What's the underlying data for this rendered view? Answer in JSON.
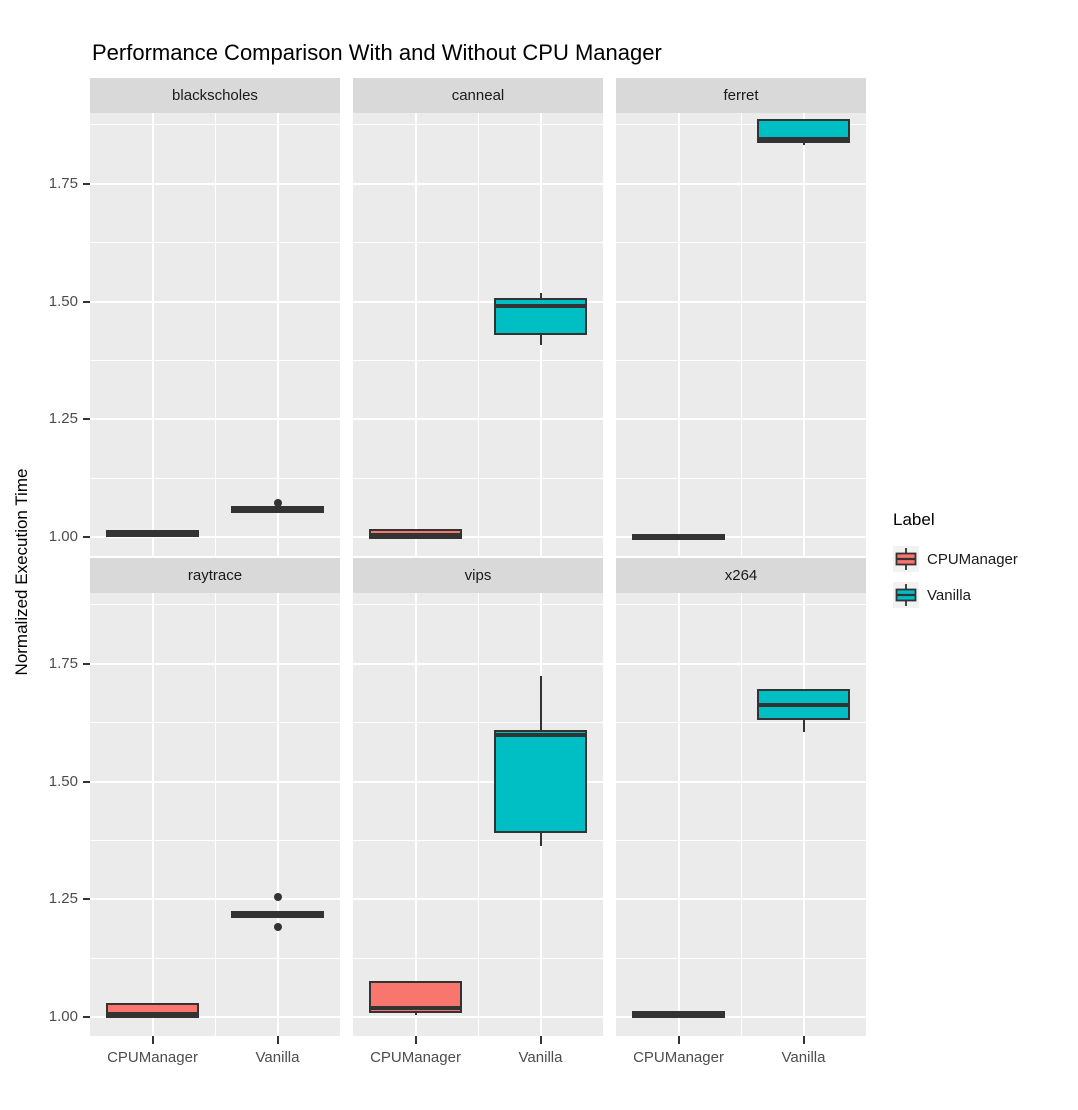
{
  "colors": {
    "series_cpumanager": "#F8766D",
    "series_vanilla": "#00BFC4",
    "panel_background": "#EBEBEB",
    "strip_background": "#D9D9D9",
    "gridline": "#FFFFFF",
    "box_outline": "#333333",
    "legend_key_background": "#F2F2F2"
  },
  "legend": {
    "title": "Label",
    "position": "right",
    "items": [
      {
        "label": "CPUManager",
        "color": "#F8766D"
      },
      {
        "label": "Vanilla",
        "color": "#00BFC4"
      }
    ]
  },
  "chart_data": {
    "type": "boxplot",
    "title": "Performance Comparison With and Without CPU Manager",
    "ylabel": "Normalized Execution Time",
    "xlabel": "",
    "categories": [
      "CPUManager",
      "Vanilla"
    ],
    "yticks": [
      "1.00",
      "1.25",
      "1.50",
      "1.75"
    ],
    "ylim": [
      0.96,
      1.9
    ],
    "grid": true,
    "facet_layout": {
      "rows": 2,
      "cols": 3
    },
    "facets": [
      {
        "name": "blackscholes",
        "boxes": [
          {
            "group": "CPUManager",
            "min": 1.002,
            "q1": 1.004,
            "median": 1.007,
            "q3": 1.01,
            "max": 1.012,
            "outliers": []
          },
          {
            "group": "Vanilla",
            "min": 1.054,
            "q1": 1.056,
            "median": 1.058,
            "q3": 1.061,
            "max": 1.063,
            "outliers": [
              1.073
            ]
          }
        ]
      },
      {
        "name": "canneal",
        "boxes": [
          {
            "group": "CPUManager",
            "min": 0.997,
            "q1": 1.0,
            "median": 1.005,
            "q3": 1.012,
            "max": 1.014,
            "outliers": []
          },
          {
            "group": "Vanilla",
            "min": 1.408,
            "q1": 1.434,
            "median": 1.49,
            "q3": 1.503,
            "max": 1.518,
            "outliers": []
          }
        ]
      },
      {
        "name": "ferret",
        "boxes": [
          {
            "group": "CPUManager",
            "min": 0.997,
            "q1": 0.999,
            "median": 1.001,
            "q3": 1.003,
            "max": 1.004,
            "outliers": []
          },
          {
            "group": "Vanilla",
            "min": 1.833,
            "q1": 1.84,
            "median": 1.845,
            "q3": 1.882,
            "max": 1.886,
            "outliers": []
          }
        ]
      },
      {
        "name": "raytrace",
        "boxes": [
          {
            "group": "CPUManager",
            "min": 1.0,
            "q1": 1.002,
            "median": 1.006,
            "q3": 1.026,
            "max": 1.028,
            "outliers": []
          },
          {
            "group": "Vanilla",
            "min": 1.212,
            "q1": 1.214,
            "median": 1.217,
            "q3": 1.22,
            "max": 1.222,
            "outliers": [
              1.254,
              1.192
            ]
          }
        ]
      },
      {
        "name": "vips",
        "boxes": [
          {
            "group": "CPUManager",
            "min": 1.004,
            "q1": 1.014,
            "median": 1.02,
            "q3": 1.072,
            "max": 1.074,
            "outliers": []
          },
          {
            "group": "Vanilla",
            "min": 1.363,
            "q1": 1.394,
            "median": 1.598,
            "q3": 1.606,
            "max": 1.724,
            "outliers": []
          }
        ]
      },
      {
        "name": "x264",
        "boxes": [
          {
            "group": "CPUManager",
            "min": 1.0,
            "q1": 1.002,
            "median": 1.005,
            "q3": 1.008,
            "max": 1.01,
            "outliers": []
          },
          {
            "group": "Vanilla",
            "min": 1.605,
            "q1": 1.635,
            "median": 1.663,
            "q3": 1.692,
            "max": 1.695,
            "outliers": []
          }
        ]
      }
    ]
  }
}
